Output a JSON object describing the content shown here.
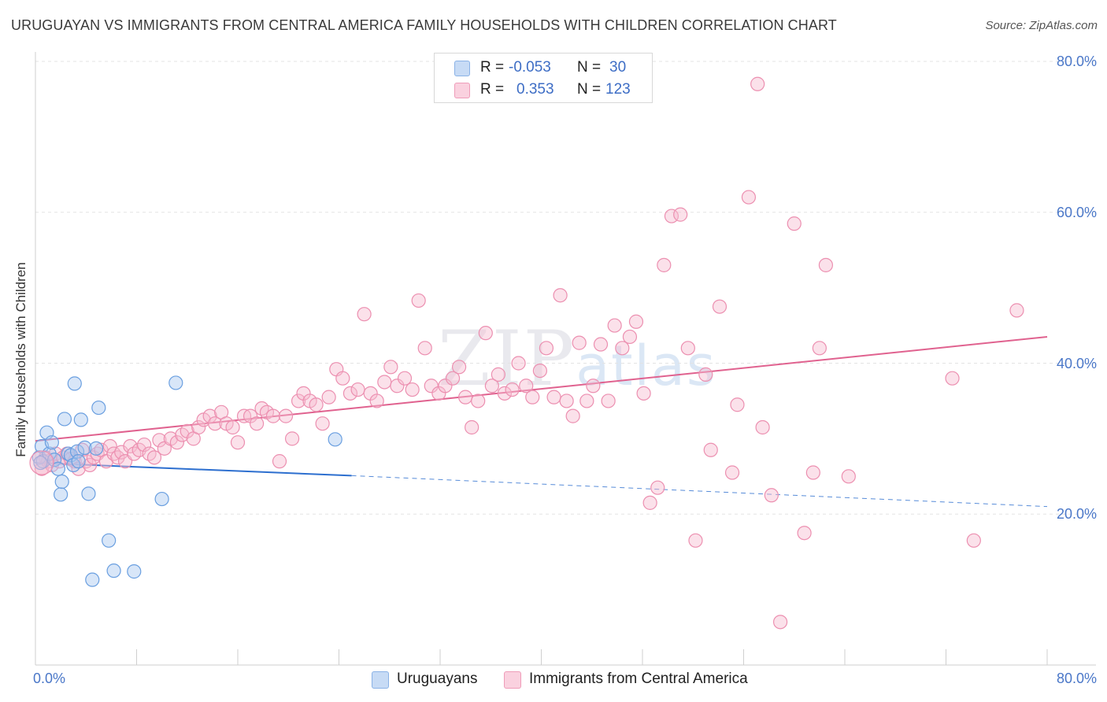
{
  "title": "URUGUAYAN VS IMMIGRANTS FROM CENTRAL AMERICA FAMILY HOUSEHOLDS WITH CHILDREN CORRELATION CHART",
  "source": "Source: ZipAtlas.com",
  "watermark": {
    "zip": "ZIP",
    "atlas": "atlas"
  },
  "stats": {
    "rows": [
      {
        "r_label": "R =",
        "r_value": "-0.053",
        "n_label": "N =",
        "n_value": "30",
        "color": "#a9c8f0"
      },
      {
        "r_label": "R =",
        "r_value": "0.353",
        "n_label": "N =",
        "n_value": "123",
        "color": "#f6bcd0"
      }
    ]
  },
  "legend": {
    "items": [
      {
        "label": "Uruguayans",
        "color": "#a9c8f0"
      },
      {
        "label": "Immigrants from Central America",
        "color": "#f6bcd0"
      }
    ]
  },
  "chart_data": {
    "type": "scatter",
    "title": "URUGUAYAN VS IMMIGRANTS FROM CENTRAL AMERICA FAMILY HOUSEHOLDS WITH CHILDREN CORRELATION CHART",
    "xlabel": "",
    "ylabel": "Family Households with Children",
    "xlim": [
      0,
      80
    ],
    "ylim": [
      0,
      80
    ],
    "x_tick_labels": [
      {
        "value": 0,
        "label": "0.0%"
      },
      {
        "value": 80,
        "label": "80.0%"
      }
    ],
    "y_tick_labels": [
      {
        "value": 20,
        "label": "20.0%"
      },
      {
        "value": 40,
        "label": "40.0%"
      },
      {
        "value": 60,
        "label": "60.0%"
      },
      {
        "value": 80,
        "label": "80.0%"
      }
    ],
    "grid": true,
    "legend_position": "bottom-center",
    "series": [
      {
        "name": "Uruguayans",
        "color": "#6a9fe0",
        "fill": "#a9c8f0",
        "trend": {
          "x0": 0,
          "y0": 26.8,
          "x1": 25,
          "y1": 25.1,
          "dash_to_x": 80,
          "dash_to_y": 21.0,
          "color": "#2d6fcf"
        },
        "points": [
          [
            0.3,
            27.5
          ],
          [
            0.5,
            29.0
          ],
          [
            0.6,
            27.0
          ],
          [
            0.9,
            30.8
          ],
          [
            1.1,
            28.0
          ],
          [
            1.3,
            29.5
          ],
          [
            1.5,
            27.2
          ],
          [
            1.8,
            26.0
          ],
          [
            2.0,
            22.6
          ],
          [
            2.1,
            24.3
          ],
          [
            2.3,
            32.6
          ],
          [
            2.6,
            28.0
          ],
          [
            2.8,
            27.8
          ],
          [
            3.0,
            26.5
          ],
          [
            3.1,
            37.3
          ],
          [
            3.3,
            28.3
          ],
          [
            3.4,
            27.0
          ],
          [
            3.6,
            32.5
          ],
          [
            3.9,
            28.8
          ],
          [
            4.2,
            22.7
          ],
          [
            4.5,
            11.3
          ],
          [
            4.8,
            28.7
          ],
          [
            5.0,
            34.1
          ],
          [
            5.8,
            16.5
          ],
          [
            6.2,
            12.5
          ],
          [
            7.8,
            12.4
          ],
          [
            10.0,
            22.0
          ],
          [
            11.1,
            37.4
          ],
          [
            23.7,
            29.9
          ],
          [
            0.4,
            26.8
          ]
        ]
      },
      {
        "name": "Immigrants from Central America",
        "color": "#ec8fb0",
        "fill": "#f6bcd0",
        "trend": {
          "x0": 0,
          "y0": 29.7,
          "x1": 80,
          "y1": 43.5,
          "color": "#e0628f"
        },
        "points": [
          [
            0.5,
            26.0
          ],
          [
            0.8,
            27.5
          ],
          [
            1.0,
            27.0
          ],
          [
            1.3,
            26.5
          ],
          [
            1.6,
            28.0
          ],
          [
            1.9,
            27.0
          ],
          [
            2.2,
            27.5
          ],
          [
            2.5,
            28.0
          ],
          [
            2.8,
            27.3
          ],
          [
            3.1,
            27.0
          ],
          [
            3.4,
            26.0
          ],
          [
            3.7,
            28.5
          ],
          [
            4.0,
            27.0
          ],
          [
            4.3,
            26.5
          ],
          [
            4.6,
            27.5
          ],
          [
            4.9,
            28.0
          ],
          [
            5.2,
            28.5
          ],
          [
            5.6,
            27.0
          ],
          [
            5.9,
            29.0
          ],
          [
            6.2,
            28.0
          ],
          [
            6.5,
            27.5
          ],
          [
            6.8,
            28.2
          ],
          [
            7.1,
            27.0
          ],
          [
            7.5,
            29.0
          ],
          [
            7.8,
            28.0
          ],
          [
            8.2,
            28.5
          ],
          [
            8.6,
            29.2
          ],
          [
            9.0,
            28.0
          ],
          [
            9.4,
            27.5
          ],
          [
            9.8,
            29.8
          ],
          [
            10.2,
            28.7
          ],
          [
            10.7,
            30.0
          ],
          [
            11.2,
            29.5
          ],
          [
            11.6,
            30.5
          ],
          [
            12.0,
            31.0
          ],
          [
            12.5,
            30.0
          ],
          [
            12.9,
            31.5
          ],
          [
            13.3,
            32.5
          ],
          [
            13.8,
            33.0
          ],
          [
            14.2,
            32.0
          ],
          [
            14.7,
            33.5
          ],
          [
            15.1,
            32.0
          ],
          [
            15.6,
            31.5
          ],
          [
            16.0,
            29.5
          ],
          [
            16.5,
            33.0
          ],
          [
            17.0,
            33.0
          ],
          [
            17.5,
            32.0
          ],
          [
            17.9,
            34.0
          ],
          [
            18.3,
            33.5
          ],
          [
            18.8,
            33.0
          ],
          [
            19.3,
            27.0
          ],
          [
            19.8,
            33.0
          ],
          [
            20.3,
            30.0
          ],
          [
            20.8,
            35.0
          ],
          [
            21.2,
            36.0
          ],
          [
            21.7,
            35.0
          ],
          [
            22.2,
            34.5
          ],
          [
            22.7,
            32.0
          ],
          [
            23.2,
            35.5
          ],
          [
            23.8,
            39.2
          ],
          [
            24.3,
            38.0
          ],
          [
            24.9,
            36.0
          ],
          [
            25.5,
            36.5
          ],
          [
            26.0,
            46.5
          ],
          [
            26.5,
            36.0
          ],
          [
            27.0,
            35.0
          ],
          [
            27.6,
            37.5
          ],
          [
            28.1,
            39.5
          ],
          [
            28.6,
            37.0
          ],
          [
            29.2,
            38.0
          ],
          [
            29.8,
            36.5
          ],
          [
            30.3,
            48.3
          ],
          [
            30.8,
            42.0
          ],
          [
            31.3,
            37.0
          ],
          [
            31.9,
            36.0
          ],
          [
            32.4,
            37.0
          ],
          [
            33.0,
            38.0
          ],
          [
            33.5,
            39.5
          ],
          [
            34.0,
            35.5
          ],
          [
            34.5,
            31.5
          ],
          [
            35.0,
            35.0
          ],
          [
            35.6,
            44.0
          ],
          [
            36.1,
            37.0
          ],
          [
            36.6,
            38.5
          ],
          [
            37.1,
            36.0
          ],
          [
            37.7,
            36.5
          ],
          [
            38.2,
            40.0
          ],
          [
            38.8,
            37.0
          ],
          [
            39.3,
            35.5
          ],
          [
            39.9,
            39.0
          ],
          [
            40.4,
            42.0
          ],
          [
            41.0,
            35.5
          ],
          [
            41.5,
            49.0
          ],
          [
            42.0,
            35.0
          ],
          [
            42.5,
            33.0
          ],
          [
            43.0,
            42.7
          ],
          [
            43.6,
            35.0
          ],
          [
            44.1,
            37.0
          ],
          [
            44.7,
            42.5
          ],
          [
            45.3,
            35.0
          ],
          [
            45.8,
            45.0
          ],
          [
            46.4,
            42.0
          ],
          [
            47.0,
            43.5
          ],
          [
            47.5,
            45.5
          ],
          [
            48.1,
            36.0
          ],
          [
            48.6,
            21.5
          ],
          [
            49.2,
            23.5
          ],
          [
            49.7,
            53.0
          ],
          [
            50.3,
            59.5
          ],
          [
            51.0,
            59.7
          ],
          [
            51.6,
            42.0
          ],
          [
            52.2,
            16.5
          ],
          [
            53.0,
            38.5
          ],
          [
            53.4,
            28.5
          ],
          [
            54.1,
            47.5
          ],
          [
            55.1,
            25.5
          ],
          [
            55.5,
            34.5
          ],
          [
            56.4,
            62.0
          ],
          [
            57.1,
            77.0
          ],
          [
            57.5,
            31.5
          ],
          [
            58.2,
            22.5
          ],
          [
            58.9,
            5.7
          ],
          [
            60.0,
            58.5
          ],
          [
            60.8,
            17.5
          ]
        ]
      }
    ],
    "extra_points_series2": [
      [
        61.5,
        25.5
      ],
      [
        62.0,
        42.0
      ],
      [
        62.5,
        53.0
      ],
      [
        64.3,
        25.0
      ],
      [
        72.5,
        38.0
      ],
      [
        74.2,
        16.5
      ],
      [
        77.6,
        47.0
      ]
    ]
  }
}
